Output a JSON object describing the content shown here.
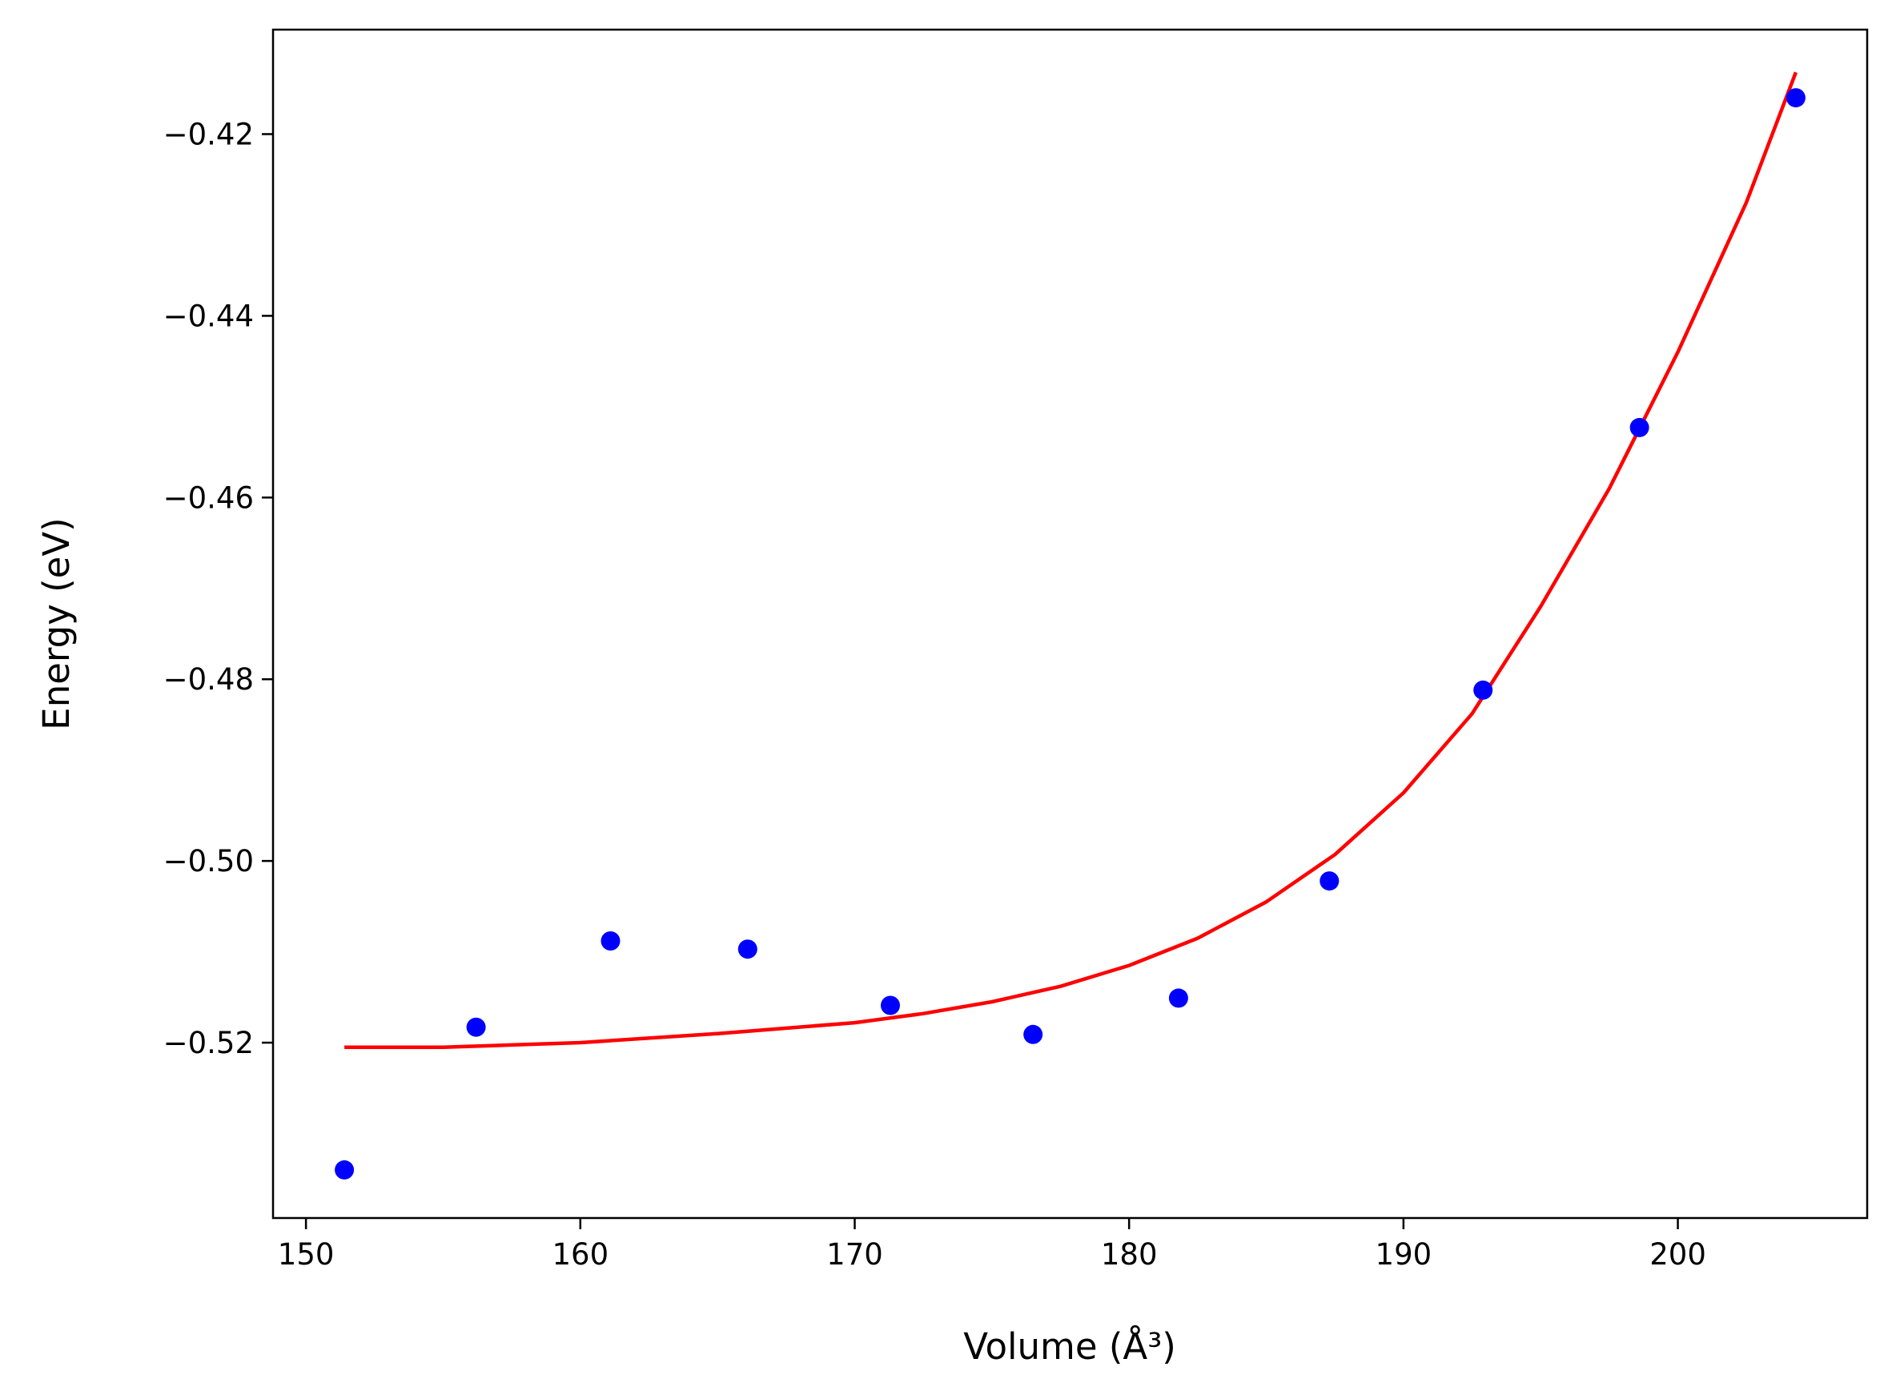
{
  "chart_data": {
    "type": "scatter",
    "title": "",
    "xlabel": "Volume (Å³)",
    "ylabel": "Energy (eV)",
    "xlim": [
      148.8,
      206.9
    ],
    "ylim": [
      -0.5393,
      -0.4085
    ],
    "x_ticks": [
      150,
      160,
      170,
      180,
      190,
      200
    ],
    "y_ticks": [
      -0.42,
      -0.44,
      -0.46,
      -0.48,
      -0.5,
      -0.52
    ],
    "x_tick_labels": [
      "150",
      "160",
      "170",
      "180",
      "190",
      "200"
    ],
    "y_tick_labels": [
      "−0.42",
      "−0.44",
      "−0.46",
      "−0.48",
      "−0.50",
      "−0.52"
    ],
    "grid": false,
    "legend": "none",
    "series": [
      {
        "kind": "scatter",
        "color": "#0000ff",
        "points": [
          {
            "x": 151.4,
            "y": -0.534
          },
          {
            "x": 156.2,
            "y": -0.5183
          },
          {
            "x": 161.1,
            "y": -0.5088
          },
          {
            "x": 166.1,
            "y": -0.5097
          },
          {
            "x": 171.3,
            "y": -0.5159
          },
          {
            "x": 176.5,
            "y": -0.5191
          },
          {
            "x": 181.8,
            "y": -0.5151
          },
          {
            "x": 187.3,
            "y": -0.5022
          },
          {
            "x": 192.9,
            "y": -0.4812
          },
          {
            "x": 198.6,
            "y": -0.4523
          },
          {
            "x": 204.3,
            "y": -0.416
          }
        ]
      },
      {
        "kind": "line",
        "color": "#ff0000",
        "points": [
          {
            "x": 151.4,
            "y": -0.5205
          },
          {
            "x": 155.0,
            "y": -0.5205
          },
          {
            "x": 160.0,
            "y": -0.52
          },
          {
            "x": 165.0,
            "y": -0.519
          },
          {
            "x": 170.0,
            "y": -0.5178
          },
          {
            "x": 172.5,
            "y": -0.5168
          },
          {
            "x": 175.0,
            "y": -0.5155
          },
          {
            "x": 177.5,
            "y": -0.5138
          },
          {
            "x": 180.0,
            "y": -0.5115
          },
          {
            "x": 182.5,
            "y": -0.5085
          },
          {
            "x": 185.0,
            "y": -0.5045
          },
          {
            "x": 187.5,
            "y": -0.4993
          },
          {
            "x": 190.0,
            "y": -0.4925
          },
          {
            "x": 192.5,
            "y": -0.4838
          },
          {
            "x": 195.0,
            "y": -0.472
          },
          {
            "x": 197.5,
            "y": -0.459
          },
          {
            "x": 200.0,
            "y": -0.444
          },
          {
            "x": 202.5,
            "y": -0.4275
          },
          {
            "x": 204.3,
            "y": -0.4132
          }
        ]
      }
    ]
  }
}
